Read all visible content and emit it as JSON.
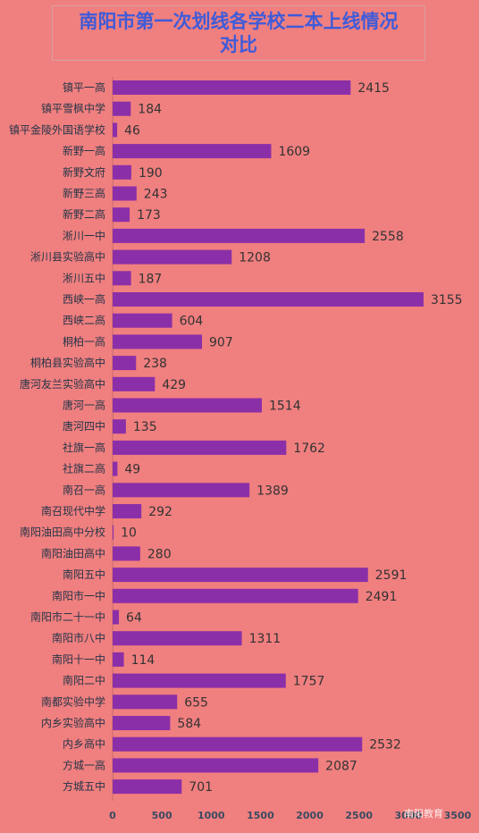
{
  "title": {
    "line1": "南阳市第一次划线各学校二本上线情况",
    "line2": "对比"
  },
  "colors": {
    "background": "#f07f7f",
    "bar": "#8b2fa8",
    "title": "#3f5bd9"
  },
  "watermark": "南阳教育",
  "chart_data": {
    "type": "bar",
    "orientation": "horizontal",
    "title": "南阳市第一次划线各学校二本上线情况对比",
    "categories": [
      "镇平一高",
      "镇平雪枫中学",
      "镇平金陵外国语学校",
      "新野一高",
      "新野文府",
      "新野三高",
      "新野二高",
      "淅川一中",
      "淅川县实验高中",
      "淅川五中",
      "西峡一高",
      "西峡二高",
      "桐柏一高",
      "桐柏县实验高中",
      "唐河友兰实验高中",
      "唐河一高",
      "唐河四中",
      "社旗一高",
      "社旗二高",
      "南召一高",
      "南召现代中学",
      "南阳油田高中分校",
      "南阳油田高中",
      "南阳五中",
      "南阳市一中",
      "南阳市二十一中",
      "南阳市八中",
      "南阳十一中",
      "南阳二中",
      "南都实验中学",
      "内乡实验高中",
      "内乡高中",
      "方城一高",
      "方城五中"
    ],
    "values": [
      2415,
      184,
      46,
      1609,
      190,
      243,
      173,
      2558,
      1208,
      187,
      3155,
      604,
      907,
      238,
      429,
      1514,
      135,
      1762,
      49,
      1389,
      292,
      10,
      280,
      2591,
      2491,
      64,
      1311,
      114,
      1757,
      655,
      584,
      2532,
      2087,
      701
    ],
    "xlim": [
      0,
      3500
    ],
    "xticks": [
      0,
      500,
      1000,
      1500,
      2000,
      2500,
      3000,
      3500
    ],
    "grid": false,
    "legend": "none"
  }
}
